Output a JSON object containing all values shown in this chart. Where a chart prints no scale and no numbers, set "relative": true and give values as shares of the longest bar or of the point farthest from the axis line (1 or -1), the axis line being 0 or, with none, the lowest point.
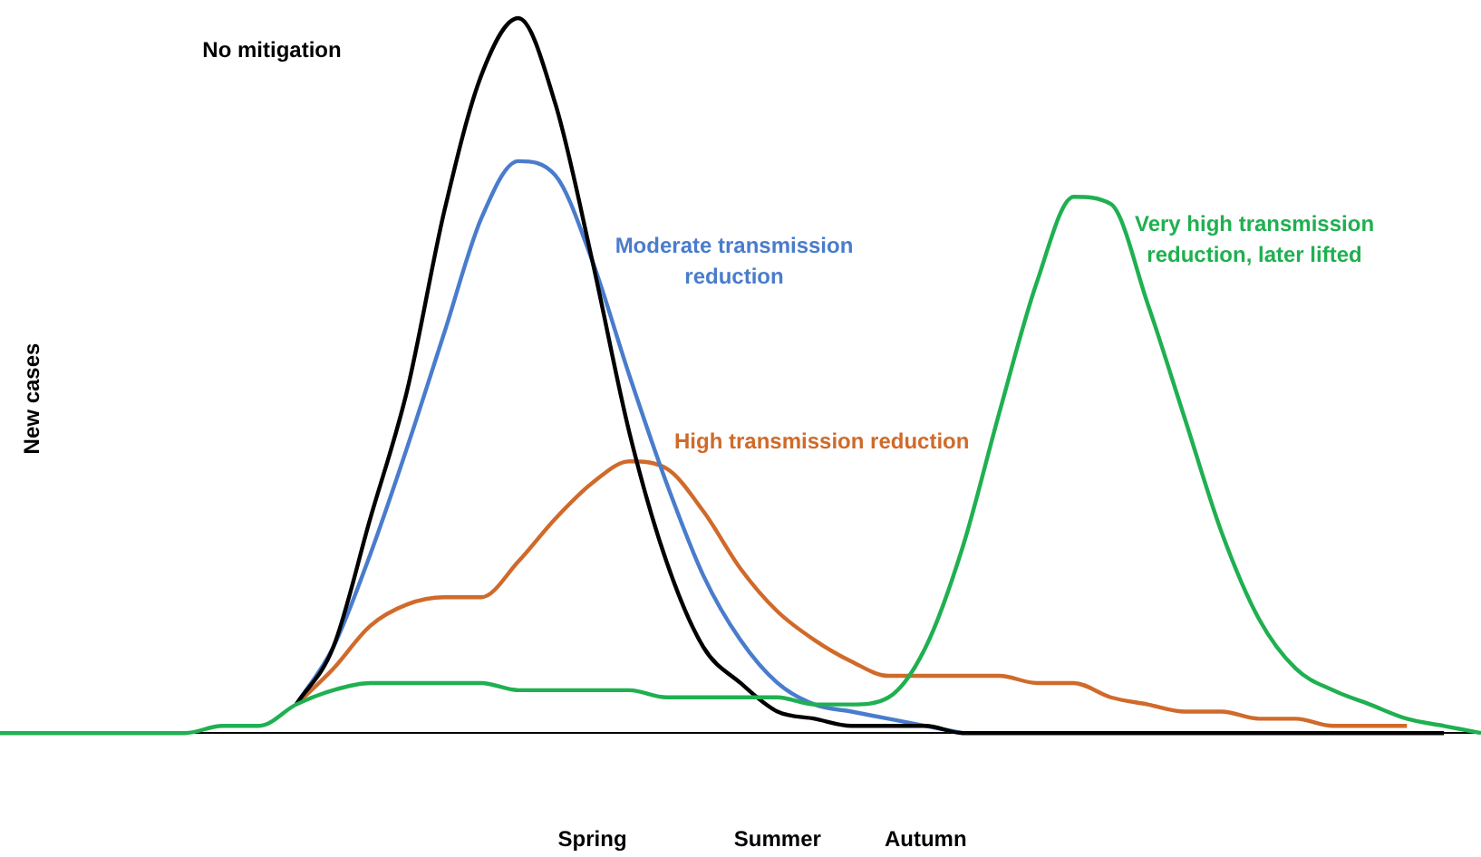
{
  "chart_data": {
    "type": "line",
    "relative": true,
    "ylabel": "New cases",
    "categories": [
      null,
      null,
      null,
      null,
      null,
      null,
      null,
      null,
      null,
      null,
      null,
      null,
      null,
      null,
      null,
      null,
      "Spring",
      null,
      null,
      null,
      null,
      "Summer",
      null,
      null,
      null,
      "Autumn",
      null,
      null,
      null,
      null,
      null,
      null,
      null,
      null,
      null,
      null,
      null,
      null,
      null,
      null,
      null
    ],
    "grid": false,
    "legend": false,
    "marker": "none",
    "line_style": "solid",
    "series": [
      {
        "name": "No mitigation",
        "color": "#000000",
        "values": [
          null,
          null,
          null,
          null,
          null,
          null,
          null,
          null,
          0.04,
          0.12,
          0.3,
          0.48,
          0.73,
          0.92,
          1,
          0.88,
          0.66,
          0.42,
          0.24,
          0.12,
          0.07,
          0.03,
          0.02,
          0.01,
          0.01,
          0.01,
          0,
          0,
          0,
          0,
          0,
          0,
          0,
          0,
          0,
          0,
          0,
          0,
          0,
          0,
          null
        ]
      },
      {
        "name": "Moderate transmission reduction",
        "color": "#4a7ccc",
        "values": [
          null,
          null,
          null,
          null,
          null,
          null,
          null,
          null,
          0.04,
          0.12,
          0.25,
          0.4,
          0.56,
          0.72,
          0.8,
          0.78,
          0.66,
          0.5,
          0.35,
          0.22,
          0.13,
          0.07,
          0.04,
          0.03,
          0.02,
          0.01,
          0,
          null,
          null,
          null,
          null,
          null,
          null,
          null,
          null,
          null,
          null,
          null,
          null,
          null,
          null
        ]
      },
      {
        "name": "High transmission reduction",
        "color": "#d06a2a",
        "values": [
          null,
          null,
          null,
          null,
          null,
          null,
          null,
          null,
          0.04,
          0.09,
          0.15,
          0.18,
          0.19,
          0.19,
          0.24,
          0.3,
          0.35,
          0.38,
          0.37,
          0.31,
          0.23,
          0.17,
          0.13,
          0.1,
          0.08,
          0.08,
          0.08,
          0.08,
          0.07,
          0.07,
          0.05,
          0.04,
          0.03,
          0.03,
          0.02,
          0.02,
          0.01,
          0.01,
          0.01,
          null,
          null
        ]
      },
      {
        "name": "Very high transmission reduction, later lifted",
        "color": "#1fb050",
        "values": [
          0,
          0,
          0,
          0,
          0,
          0,
          0.01,
          0.01,
          0.04,
          0.06,
          0.07,
          0.07,
          0.07,
          0.07,
          0.06,
          0.06,
          0.06,
          0.06,
          0.05,
          0.05,
          0.05,
          0.05,
          0.04,
          0.04,
          0.05,
          0.12,
          0.26,
          0.45,
          0.63,
          0.75,
          0.74,
          0.6,
          0.44,
          0.28,
          0.16,
          0.09,
          0.06,
          0.04,
          0.02,
          0.01,
          0
        ]
      }
    ]
  }
}
